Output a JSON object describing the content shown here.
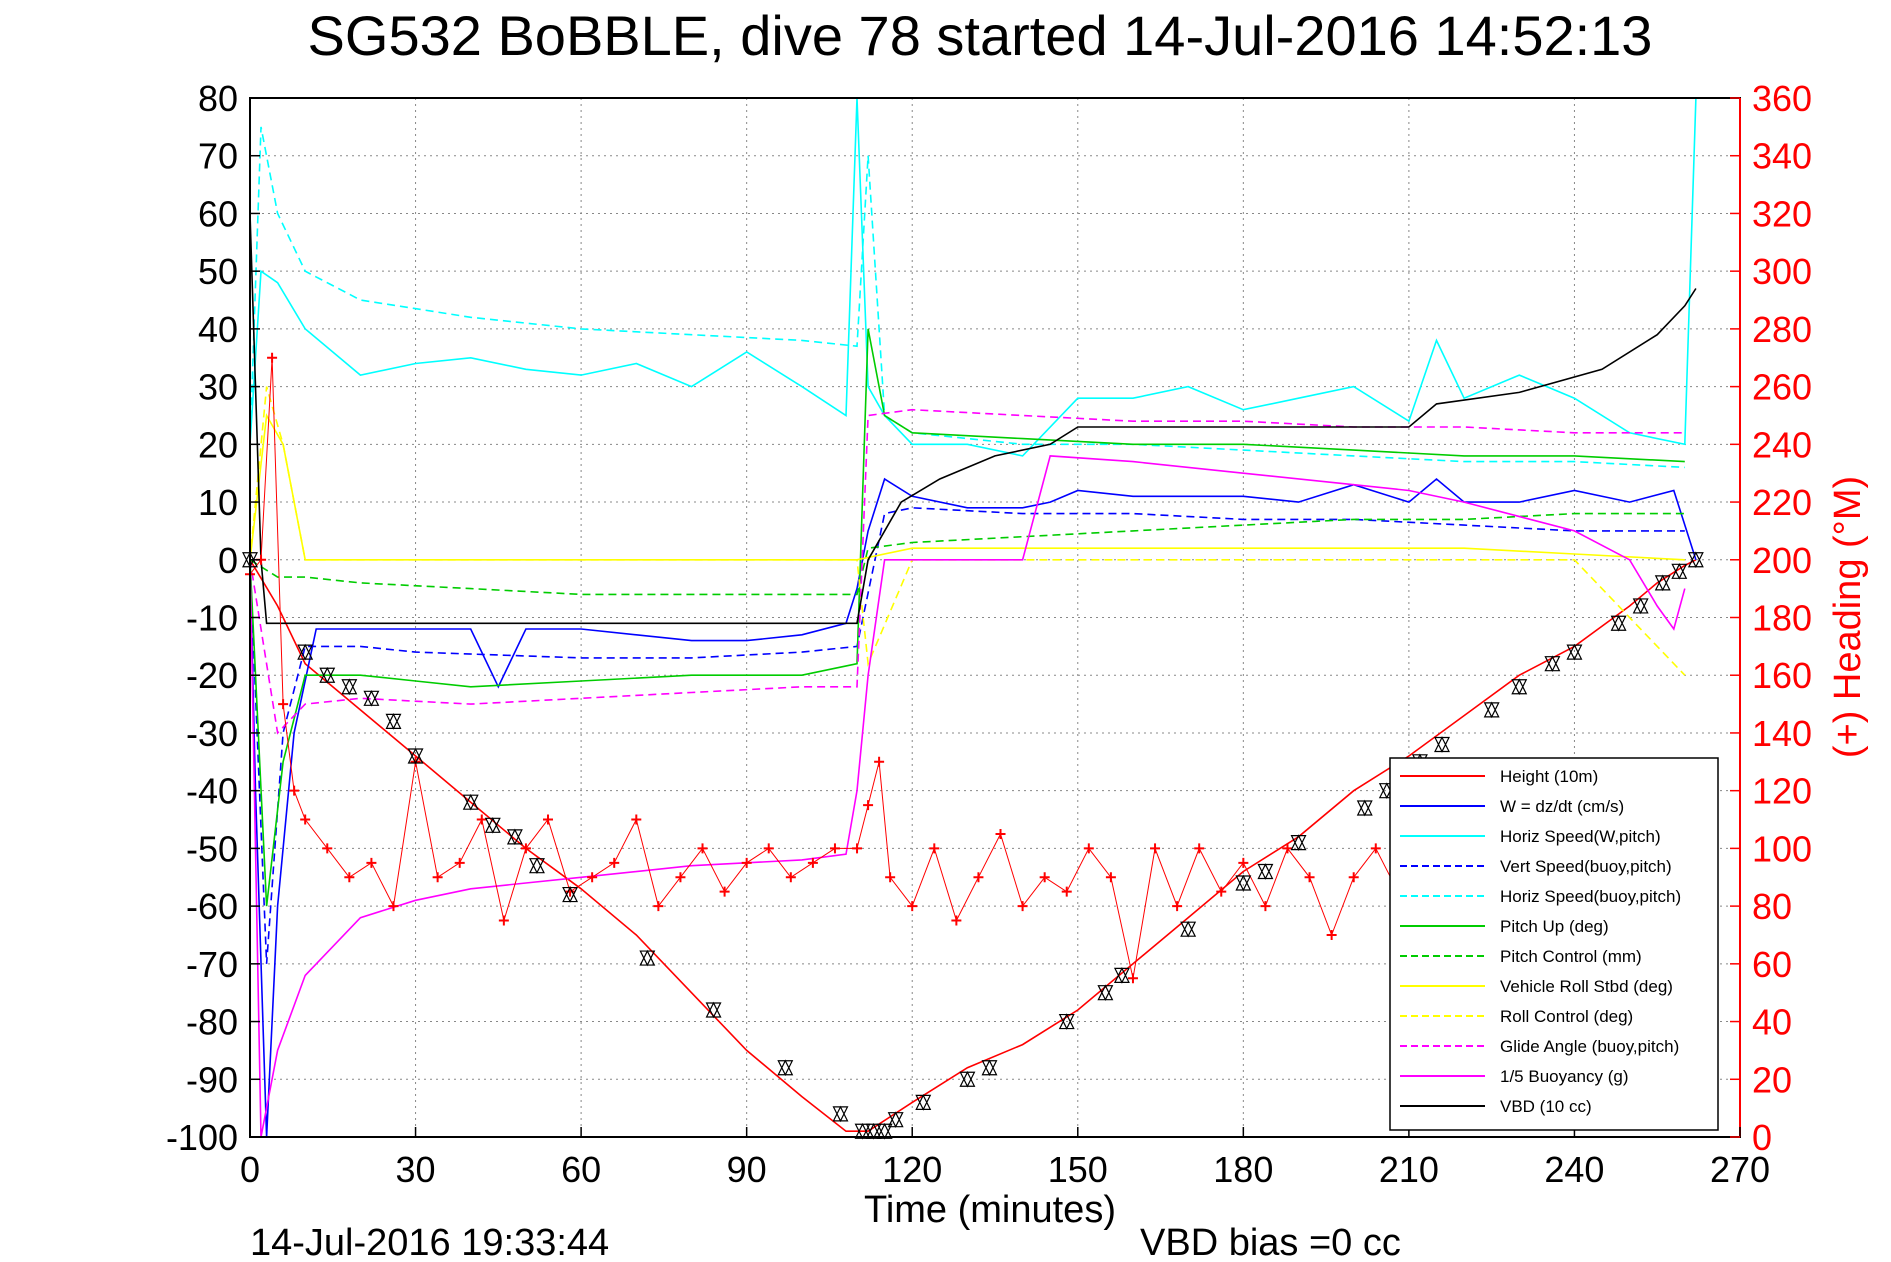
{
  "chart_data": {
    "type": "line",
    "title": "SG532 BoBBLE, dive 78 started 14-Jul-2016 14:52:13",
    "xlabel": "Time (minutes)",
    "ylabel": "",
    "y2label": "(+) Heading (°M)",
    "xlim": [
      0,
      270
    ],
    "ylim": [
      -100,
      80
    ],
    "y2lim": [
      0,
      360
    ],
    "grid": true,
    "legend_position": "lower-right",
    "x_ticks": [
      0,
      30,
      60,
      90,
      120,
      150,
      180,
      210,
      240,
      270
    ],
    "y_ticks": [
      80,
      70,
      60,
      50,
      40,
      30,
      20,
      10,
      0,
      -10,
      -20,
      -30,
      -40,
      -50,
      -60,
      -70,
      -80,
      -90,
      -100
    ],
    "y2_ticks": [
      360,
      340,
      320,
      300,
      280,
      260,
      240,
      220,
      200,
      180,
      160,
      140,
      120,
      100,
      80,
      60,
      40,
      20,
      0
    ],
    "footer_left": "14-Jul-2016 19:33:44",
    "footer_right": "VBD bias =0 cc",
    "series": [
      {
        "name": "Height (10m)",
        "color": "#ff0000",
        "style": "solid",
        "x": [
          0,
          5,
          10,
          20,
          30,
          40,
          50,
          60,
          70,
          80,
          90,
          100,
          108,
          112,
          120,
          130,
          140,
          150,
          160,
          170,
          180,
          190,
          200,
          210,
          220,
          230,
          240,
          250,
          255,
          260,
          262
        ],
        "y": [
          0,
          -8,
          -18,
          -26,
          -34,
          -42,
          -50,
          -57,
          -65,
          -75,
          -85,
          -93,
          -99,
          -99,
          -94,
          -88,
          -84,
          -78,
          -70,
          -62,
          -54,
          -48,
          -40,
          -34,
          -27,
          -20,
          -15,
          -8,
          -4,
          -1,
          0
        ]
      },
      {
        "name": "W = dz/dt (cm/s)",
        "color": "#0000ff",
        "style": "solid",
        "x": [
          0,
          1,
          3,
          5,
          8,
          12,
          20,
          30,
          40,
          45,
          50,
          60,
          70,
          80,
          90,
          100,
          108,
          110,
          112,
          115,
          120,
          130,
          140,
          145,
          150,
          160,
          170,
          180,
          190,
          200,
          210,
          215,
          220,
          230,
          240,
          250,
          258,
          262
        ],
        "y": [
          0,
          -40,
          -100,
          -60,
          -30,
          -12,
          -12,
          -12,
          -12,
          -22,
          -12,
          -12,
          -13,
          -14,
          -14,
          -13,
          -11,
          -5,
          5,
          14,
          11,
          9,
          9,
          10,
          12,
          11,
          11,
          11,
          10,
          13,
          10,
          14,
          10,
          10,
          12,
          10,
          12,
          0
        ]
      },
      {
        "name": "Horiz Speed(W,pitch)",
        "color": "#00ffff",
        "style": "solid",
        "x": [
          0,
          2,
          5,
          10,
          20,
          30,
          40,
          50,
          60,
          70,
          80,
          90,
          100,
          108,
          110,
          112,
          115,
          120,
          130,
          140,
          150,
          160,
          170,
          180,
          190,
          200,
          210,
          215,
          220,
          230,
          240,
          250,
          260,
          262
        ],
        "y": [
          20,
          50,
          48,
          40,
          32,
          34,
          35,
          33,
          32,
          34,
          30,
          36,
          30,
          25,
          80,
          30,
          25,
          20,
          20,
          18,
          28,
          28,
          30,
          26,
          28,
          30,
          24,
          38,
          28,
          32,
          28,
          22,
          20,
          80
        ]
      },
      {
        "name": "Vert Speed(buoy,pitch)",
        "color": "#0000ff",
        "style": "dashed",
        "x": [
          0,
          3,
          6,
          10,
          20,
          30,
          60,
          80,
          100,
          110,
          115,
          120,
          140,
          160,
          180,
          200,
          220,
          240,
          260
        ],
        "y": [
          0,
          -70,
          -30,
          -15,
          -15,
          -16,
          -17,
          -17,
          -16,
          -15,
          8,
          9,
          8,
          8,
          7,
          7,
          6,
          5,
          5
        ]
      },
      {
        "name": "Horiz Speed(buoy,pitch)",
        "color": "#00ffff",
        "style": "dashed",
        "x": [
          0,
          2,
          5,
          10,
          20,
          40,
          60,
          80,
          100,
          110,
          112,
          115,
          120,
          140,
          160,
          180,
          200,
          220,
          240,
          260
        ],
        "y": [
          20,
          75,
          60,
          50,
          45,
          42,
          40,
          39,
          38,
          37,
          70,
          25,
          22,
          20,
          20,
          19,
          18,
          17,
          17,
          16
        ]
      },
      {
        "name": "Pitch Up (deg)",
        "color": "#00cc00",
        "style": "solid",
        "x": [
          0,
          3,
          6,
          10,
          20,
          30,
          40,
          60,
          80,
          100,
          110,
          112,
          115,
          120,
          140,
          160,
          180,
          200,
          220,
          240,
          260
        ],
        "y": [
          0,
          -60,
          -35,
          -20,
          -20,
          -21,
          -22,
          -21,
          -20,
          -20,
          -18,
          40,
          25,
          22,
          21,
          20,
          20,
          19,
          18,
          18,
          17
        ]
      },
      {
        "name": "Pitch Control (mm)",
        "color": "#00cc00",
        "style": "dashed",
        "x": [
          0,
          5,
          10,
          20,
          40,
          60,
          80,
          100,
          110,
          112,
          120,
          140,
          160,
          180,
          200,
          220,
          240,
          260
        ],
        "y": [
          0,
          -3,
          -3,
          -4,
          -5,
          -6,
          -6,
          -6,
          -6,
          2,
          3,
          4,
          5,
          6,
          7,
          7,
          8,
          8
        ]
      },
      {
        "name": "Vehicle Roll Stbd (deg)",
        "color": "#ffff00",
        "style": "solid",
        "x": [
          0,
          3,
          6,
          10,
          20,
          40,
          60,
          80,
          100,
          110,
          120,
          140,
          160,
          180,
          200,
          220,
          240,
          260
        ],
        "y": [
          0,
          25,
          20,
          0,
          0,
          0,
          0,
          0,
          0,
          0,
          2,
          2,
          2,
          2,
          2,
          2,
          1,
          0
        ]
      },
      {
        "name": "Roll Control (deg)",
        "color": "#ffff00",
        "style": "dashed",
        "x": [
          0,
          3,
          6,
          10,
          40,
          80,
          110,
          112,
          120,
          160,
          200,
          240,
          260
        ],
        "y": [
          0,
          30,
          20,
          0,
          0,
          0,
          0,
          -18,
          0,
          0,
          0,
          0,
          -20
        ]
      },
      {
        "name": "Glide Angle (buoy,pitch)",
        "color": "#ff00ff",
        "style": "dashed",
        "x": [
          0,
          5,
          10,
          20,
          40,
          60,
          80,
          100,
          110,
          112,
          120,
          140,
          160,
          180,
          200,
          220,
          240,
          260
        ],
        "y": [
          0,
          -30,
          -25,
          -24,
          -25,
          -24,
          -23,
          -22,
          -22,
          25,
          26,
          25,
          24,
          24,
          23,
          23,
          22,
          22
        ]
      },
      {
        "name": "1/5 Buoyancy (g)",
        "color": "#ff00ff",
        "style": "solid",
        "x": [
          0,
          2,
          5,
          10,
          20,
          30,
          40,
          50,
          60,
          80,
          100,
          108,
          110,
          112,
          115,
          120,
          140,
          145,
          160,
          180,
          200,
          210,
          220,
          240,
          250,
          255,
          258,
          260
        ],
        "y": [
          0,
          -100,
          -85,
          -72,
          -62,
          -59,
          -57,
          -56,
          -55,
          -53,
          -52,
          -51,
          -40,
          -20,
          0,
          0,
          0,
          18,
          17,
          15,
          13,
          12,
          10,
          5,
          0,
          -8,
          -12,
          -5
        ]
      },
      {
        "name": "VBD (10 cc)",
        "color": "#000000",
        "style": "solid",
        "x": [
          0,
          2,
          3,
          10,
          40,
          80,
          100,
          110,
          112,
          118,
          125,
          135,
          145,
          150,
          160,
          180,
          200,
          210,
          215,
          230,
          245,
          255,
          260,
          262
        ],
        "y": [
          60,
          0,
          -11,
          -11,
          -11,
          -11,
          -11,
          -11,
          0,
          10,
          14,
          18,
          20,
          23,
          23,
          23,
          23,
          23,
          27,
          29,
          33,
          39,
          44,
          47
        ]
      }
    ],
    "heading_series": {
      "name": "Heading",
      "color": "#ff0000",
      "style": "markers-plus",
      "x": [
        0,
        2,
        4,
        6,
        8,
        10,
        14,
        18,
        22,
        26,
        30,
        34,
        38,
        42,
        46,
        50,
        54,
        58,
        62,
        66,
        70,
        74,
        78,
        82,
        86,
        90,
        94,
        98,
        102,
        106,
        110,
        112,
        114,
        116,
        120,
        124,
        128,
        132,
        136,
        140,
        144,
        148,
        152,
        156,
        160,
        164,
        168,
        172,
        176,
        180,
        184,
        188,
        192,
        196,
        200,
        204,
        208
      ],
      "y": [
        195,
        200,
        270,
        150,
        120,
        110,
        100,
        90,
        95,
        80,
        130,
        90,
        95,
        110,
        75,
        100,
        110,
        85,
        90,
        95,
        110,
        80,
        90,
        100,
        85,
        95,
        100,
        90,
        95,
        100,
        100,
        115,
        130,
        90,
        80,
        100,
        75,
        90,
        105,
        80,
        90,
        85,
        100,
        90,
        55,
        100,
        80,
        100,
        85,
        95,
        80,
        100,
        90,
        70,
        90,
        100,
        85
      ]
    }
  },
  "markers": {
    "triangle_points": [
      [
        0,
        0
      ],
      [
        10,
        -16
      ],
      [
        14,
        -20
      ],
      [
        18,
        -22
      ],
      [
        22,
        -24
      ],
      [
        26,
        -28
      ],
      [
        30,
        -34
      ],
      [
        40,
        -42
      ],
      [
        44,
        -46
      ],
      [
        48,
        -48
      ],
      [
        52,
        -53
      ],
      [
        58,
        -58
      ],
      [
        72,
        -69
      ],
      [
        84,
        -78
      ],
      [
        97,
        -88
      ],
      [
        107,
        -96
      ],
      [
        111,
        -99
      ],
      [
        113,
        -99
      ],
      [
        115,
        -99
      ],
      [
        117,
        -97
      ],
      [
        122,
        -94
      ],
      [
        130,
        -90
      ],
      [
        134,
        -88
      ],
      [
        148,
        -80
      ],
      [
        155,
        -75
      ],
      [
        158,
        -72
      ],
      [
        170,
        -64
      ],
      [
        180,
        -56
      ],
      [
        184,
        -54
      ],
      [
        190,
        -49
      ],
      [
        202,
        -43
      ],
      [
        206,
        -40
      ],
      [
        212,
        -35
      ],
      [
        216,
        -32
      ],
      [
        225,
        -26
      ],
      [
        230,
        -22
      ],
      [
        236,
        -18
      ],
      [
        240,
        -16
      ],
      [
        248,
        -11
      ],
      [
        252,
        -8
      ],
      [
        256,
        -4
      ],
      [
        259,
        -2
      ],
      [
        262,
        0
      ]
    ]
  }
}
